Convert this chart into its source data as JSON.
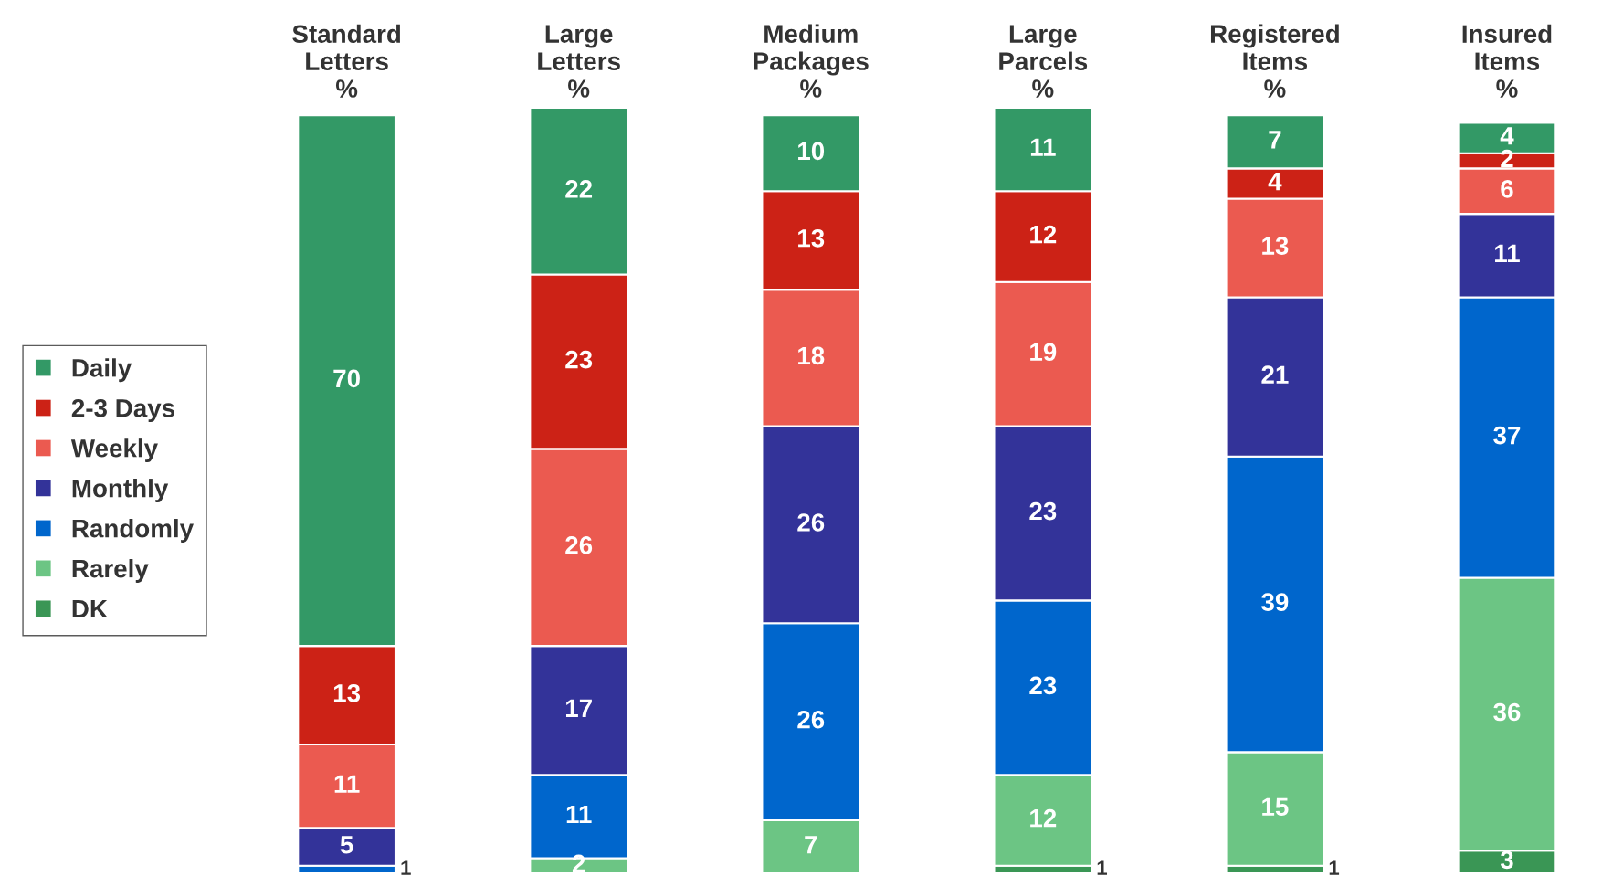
{
  "chart_data": {
    "type": "bar",
    "stacked": true,
    "data_labels": true,
    "legend": "left",
    "grid": false,
    "categories": [
      "Standard\nLetters\n%",
      "Large\nLetters\n%",
      "Medium\nPackages\n%",
      "Large\nParcels\n%",
      "Registered\nItems\n%",
      "Insured\nItems\n%"
    ],
    "series": [
      {
        "name": "DK",
        "color": "#3a9655",
        "values": [
          null,
          null,
          null,
          1,
          1,
          3
        ]
      },
      {
        "name": "Rarely",
        "color": "#6cc584",
        "values": [
          null,
          2,
          7,
          12,
          15,
          36
        ]
      },
      {
        "name": "Randomly",
        "color": "#0066cc",
        "values": [
          1,
          11,
          26,
          23,
          39,
          37
        ]
      },
      {
        "name": "Monthly",
        "color": "#333399",
        "values": [
          5,
          17,
          26,
          23,
          21,
          11
        ]
      },
      {
        "name": "Weekly",
        "color": "#eb5a50",
        "values": [
          11,
          26,
          18,
          19,
          13,
          6
        ]
      },
      {
        "name": "2-3 Days",
        "color": "#cc2216",
        "values": [
          13,
          23,
          13,
          12,
          4,
          2
        ]
      },
      {
        "name": "Daily",
        "color": "#339966",
        "values": [
          70,
          22,
          10,
          11,
          7,
          4
        ]
      }
    ]
  }
}
